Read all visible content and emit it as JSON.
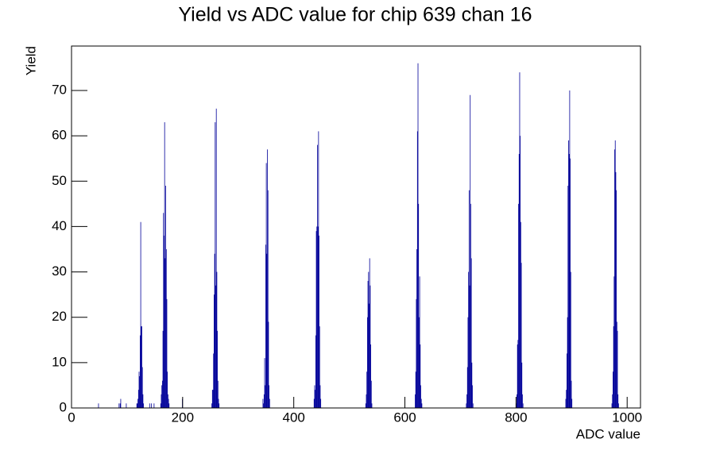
{
  "chart_data": {
    "type": "histogram",
    "title": "Yield vs ADC value for chip 639 chan 16",
    "xlabel": "ADC value",
    "ylabel": "Yield",
    "color": "#000099",
    "xlim": [
      0,
      1024
    ],
    "ylim": [
      0,
      79.8
    ],
    "xticks": [
      0,
      200,
      400,
      600,
      800,
      1000
    ],
    "yticks": [
      0,
      10,
      20,
      30,
      40,
      50,
      60,
      70
    ],
    "x": [
      48,
      85,
      87,
      88,
      98,
      117,
      118,
      119,
      120,
      121,
      122,
      123,
      124,
      125,
      126,
      127,
      128,
      129,
      140,
      143,
      148,
      160,
      161,
      162,
      163,
      164,
      165,
      166,
      167,
      168,
      169,
      170,
      171,
      172,
      173,
      174,
      175,
      199,
      252,
      253,
      254,
      255,
      256,
      257,
      258,
      259,
      260,
      261,
      262,
      263,
      264,
      265,
      344,
      345,
      346,
      347,
      348,
      349,
      350,
      351,
      352,
      353,
      354,
      355,
      356,
      436,
      437,
      438,
      439,
      440,
      441,
      442,
      443,
      444,
      445,
      446,
      447,
      448,
      529,
      530,
      531,
      532,
      533,
      534,
      535,
      536,
      537,
      538,
      539,
      540,
      618,
      619,
      620,
      621,
      622,
      623,
      624,
      625,
      626,
      627,
      628,
      629,
      630,
      710,
      711,
      712,
      713,
      714,
      715,
      716,
      717,
      718,
      719,
      720,
      721,
      722,
      800,
      801,
      802,
      803,
      804,
      805,
      806,
      807,
      808,
      809,
      810,
      811,
      812,
      889,
      890,
      891,
      892,
      893,
      894,
      895,
      896,
      897,
      898,
      899,
      900,
      972,
      973,
      974,
      975,
      976,
      977,
      978,
      979,
      980,
      981,
      982,
      983,
      984
    ],
    "values": [
      1,
      1,
      1,
      2,
      1,
      1,
      1,
      2,
      4,
      8,
      7,
      16,
      41,
      18,
      18,
      9,
      3,
      1,
      1,
      1,
      1,
      1,
      3,
      5,
      6,
      17,
      43,
      38,
      63,
      33,
      49,
      35,
      24,
      8,
      3,
      2,
      1,
      2,
      1,
      4,
      4,
      12,
      25,
      34,
      63,
      27,
      66,
      30,
      17,
      6,
      2,
      1,
      2,
      1,
      3,
      11,
      5,
      36,
      54,
      34,
      57,
      48,
      19,
      5,
      2,
      2,
      5,
      4,
      16,
      39,
      40,
      58,
      40,
      61,
      38,
      18,
      5,
      2,
      1,
      3,
      8,
      20,
      28,
      30,
      23,
      33,
      27,
      14,
      6,
      1,
      3,
      8,
      24,
      35,
      61,
      76,
      45,
      20,
      29,
      14,
      5,
      2,
      1,
      1,
      3,
      9,
      20,
      30,
      48,
      27,
      69,
      45,
      33,
      10,
      5,
      1,
      1,
      3,
      14,
      15,
      45,
      56,
      74,
      60,
      41,
      32,
      10,
      3,
      1,
      2,
      4,
      12,
      20,
      49,
      59,
      56,
      70,
      55,
      30,
      6,
      2,
      1,
      3,
      8,
      18,
      29,
      57,
      59,
      52,
      48,
      19,
      17,
      3,
      1
    ]
  }
}
